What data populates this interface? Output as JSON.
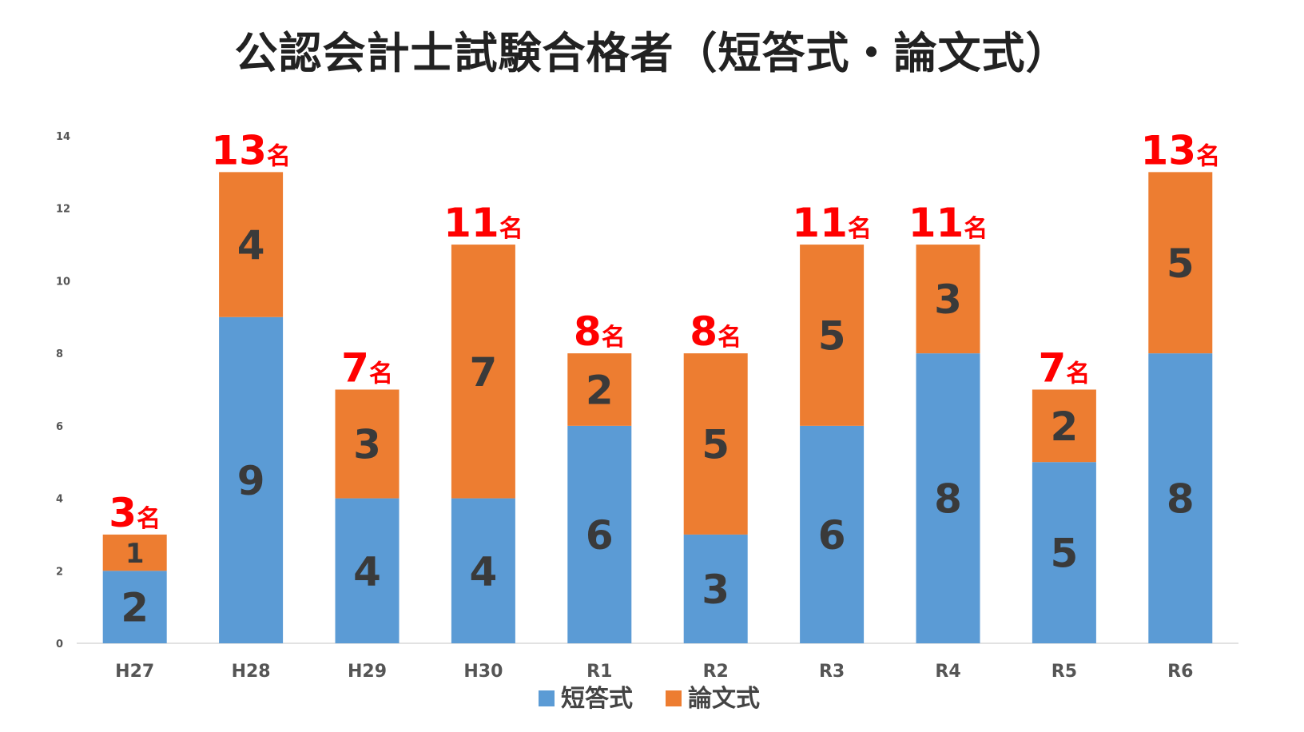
{
  "chart_data": {
    "type": "bar",
    "stacked": true,
    "title": "公認会計士試験合格者（短答式・論文式）",
    "categories": [
      "H27",
      "H28",
      "H29",
      "H30",
      "R1",
      "R2",
      "R3",
      "R4",
      "R5",
      "R6"
    ],
    "series": [
      {
        "name": "短答式",
        "color": "#5b9bd5",
        "values": [
          2,
          9,
          4,
          4,
          6,
          3,
          6,
          8,
          5,
          8
        ]
      },
      {
        "name": "論文式",
        "color": "#ed7d31",
        "values": [
          1,
          4,
          3,
          7,
          2,
          5,
          5,
          3,
          2,
          5
        ]
      }
    ],
    "totals": [
      3,
      13,
      7,
      11,
      8,
      8,
      11,
      11,
      7,
      13
    ],
    "total_unit": "名",
    "total_label_color": "#ff0000",
    "ylim": [
      0,
      14
    ],
    "yticks": [
      0,
      2,
      4,
      6,
      8,
      10,
      12,
      14
    ],
    "grid": false,
    "legend": "bottom-center",
    "xlabel": "",
    "ylabel": ""
  }
}
